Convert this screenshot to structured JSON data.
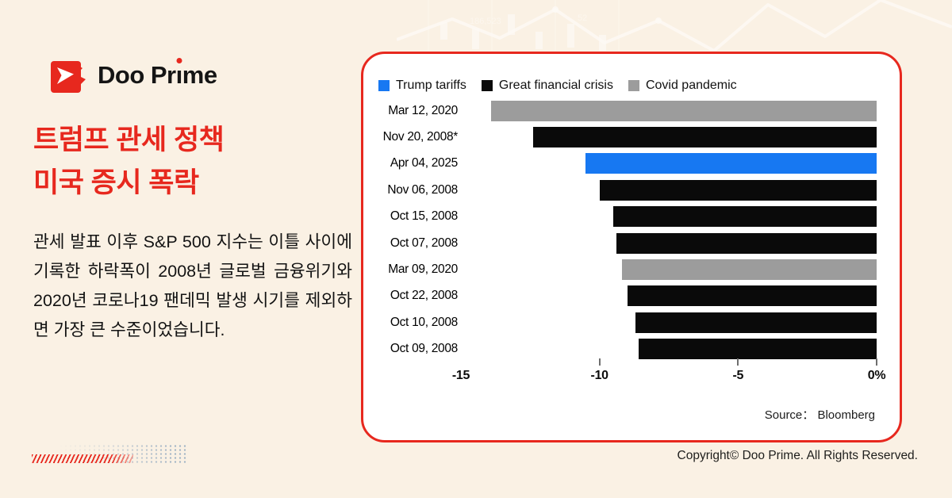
{
  "brand": {
    "full_name": "Doo Prime",
    "name_pre": "Doo Pr",
    "name_dotless_i": "ı",
    "name_post": "me"
  },
  "headline": {
    "line1": "트럼프 관세 정책",
    "line2": "미국 증시 폭락"
  },
  "body_text": "관세 발표 이후 S&P 500 지수는 이틀 사이에 기록한 하락폭이 2008년 글로벌 금융위기와 2020년 코로나19 팬데믹 발생 시기를 제외하면 가장 큰 수준이었습니다.",
  "chart_data": {
    "type": "bar",
    "orientation": "horizontal",
    "xlim": [
      -15,
      0
    ],
    "grid": false,
    "legend_position": "top",
    "legend": [
      {
        "key": "trump",
        "label": "Trump tariffs",
        "color": "#1778F2"
      },
      {
        "key": "gfc",
        "label": "Great financial crisis",
        "color": "#0A0A0A"
      },
      {
        "key": "covid",
        "label": "Covid pandemic",
        "color": "#9C9C9C"
      }
    ],
    "group_colors": {
      "trump": "#1778F2",
      "gfc": "#0A0A0A",
      "covid": "#9C9C9C"
    },
    "rows": [
      {
        "label": "Mar 12, 2020",
        "value": -13.9,
        "group": "covid"
      },
      {
        "label": "Nov 20, 2008*",
        "value": -12.4,
        "group": "gfc"
      },
      {
        "label": "Apr 04, 2025",
        "value": -10.5,
        "group": "trump"
      },
      {
        "label": "Nov 06, 2008",
        "value": -10.0,
        "group": "gfc"
      },
      {
        "label": "Oct 15, 2008",
        "value": -9.5,
        "group": "gfc"
      },
      {
        "label": "Oct 07, 2008",
        "value": -9.4,
        "group": "gfc"
      },
      {
        "label": "Mar 09, 2020",
        "value": -9.2,
        "group": "covid"
      },
      {
        "label": "Oct 22, 2008",
        "value": -9.0,
        "group": "gfc"
      },
      {
        "label": "Oct 10, 2008",
        "value": -8.7,
        "group": "gfc"
      },
      {
        "label": "Oct 09, 2008",
        "value": -8.6,
        "group": "gfc"
      }
    ],
    "x_ticks": [
      {
        "label": "-15",
        "value": -15,
        "mark": false
      },
      {
        "label": "-10",
        "value": -10,
        "mark": true
      },
      {
        "label": "-5",
        "value": -5,
        "mark": true
      },
      {
        "label": "0%",
        "value": 0,
        "mark": true
      }
    ],
    "source_label": "Source： ",
    "source_value": "Bloomberg"
  },
  "footer": {
    "copyright": "Copyright© Doo Prime. All Rights Reserved."
  },
  "colors": {
    "background": "#FAF1E4",
    "brand_red": "#E7281E",
    "card_border": "#E7281E",
    "bar_blue": "#1778F2",
    "bar_black": "#0A0A0A",
    "bar_gray": "#9C9C9C",
    "text_dark": "#131313",
    "deco_dots": "#9FB2C4"
  }
}
